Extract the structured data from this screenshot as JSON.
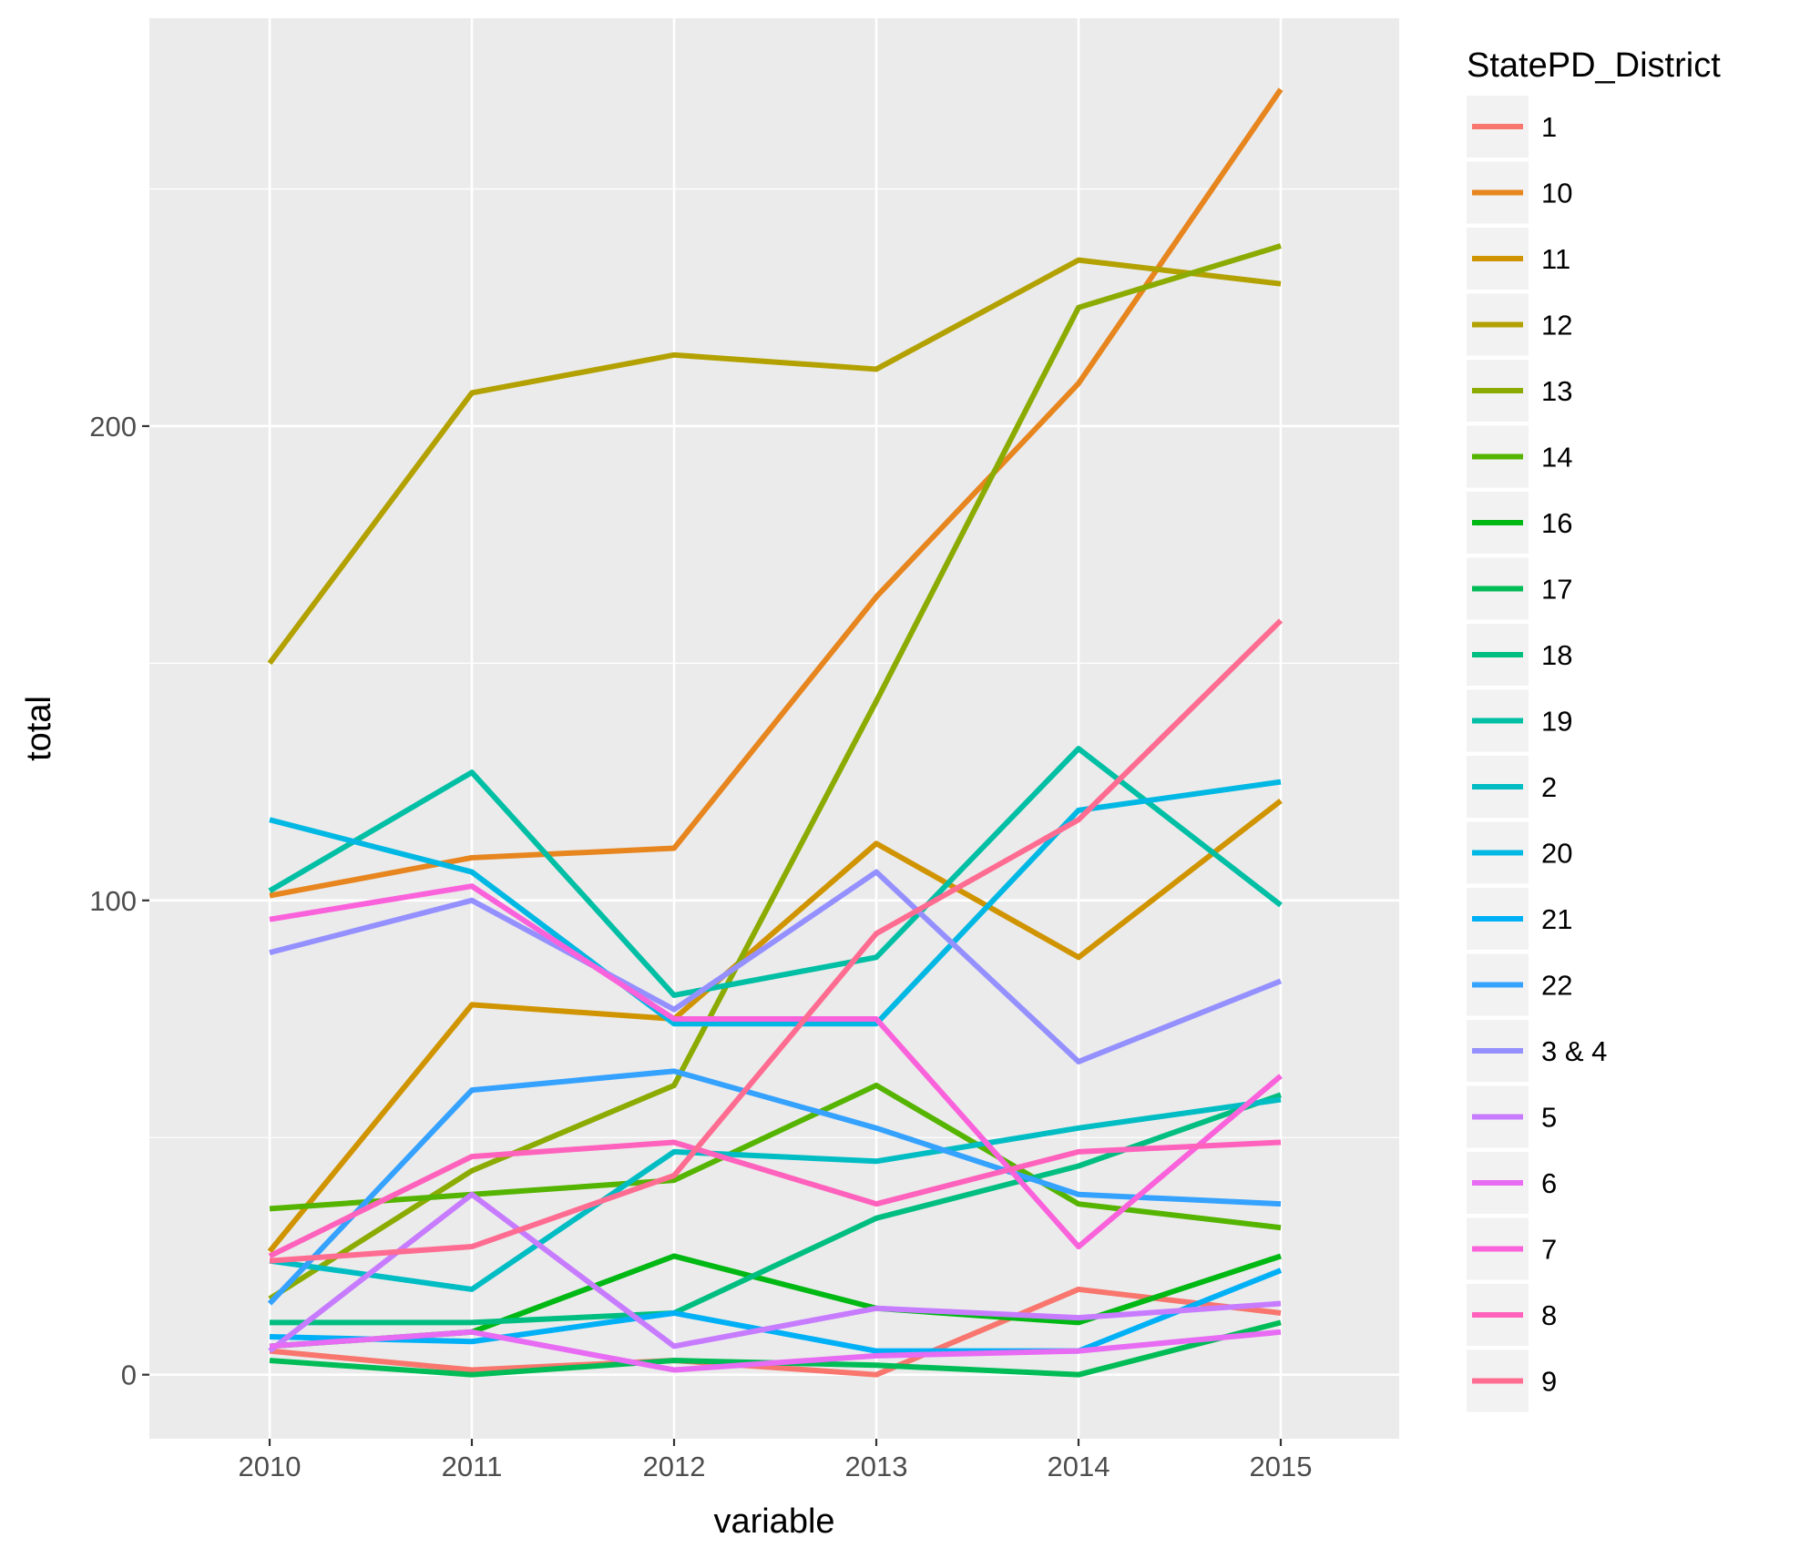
{
  "chart_data": {
    "type": "line",
    "xlabel": "variable",
    "ylabel": "total",
    "x": [
      "2010",
      "2011",
      "2012",
      "2013",
      "2014",
      "2015"
    ],
    "y_ticks": [
      0,
      100,
      200
    ],
    "ylim": [
      -13.5,
      286
    ],
    "grid": true,
    "legend": {
      "title": "StatePD_District",
      "placement": "right"
    },
    "series": [
      {
        "name": "1",
        "color": "#F8766D",
        "values": [
          5,
          1,
          3,
          0,
          18,
          13
        ]
      },
      {
        "name": "10",
        "color": "#E7851E",
        "values": [
          101,
          109,
          111,
          164,
          209,
          271
        ]
      },
      {
        "name": "11",
        "color": "#D09400",
        "values": [
          26,
          78,
          75,
          112,
          88,
          121
        ]
      },
      {
        "name": "12",
        "color": "#B2A100",
        "values": [
          150,
          207,
          215,
          212,
          235,
          230
        ]
      },
      {
        "name": "13",
        "color": "#8BAB00",
        "values": [
          16,
          43,
          61,
          142,
          225,
          238
        ]
      },
      {
        "name": "14",
        "color": "#55B400",
        "values": [
          35,
          38,
          41,
          61,
          36,
          31
        ]
      },
      {
        "name": "16",
        "color": "#00B813",
        "values": [
          6,
          9,
          25,
          14,
          11,
          25
        ]
      },
      {
        "name": "17",
        "color": "#00BC56",
        "values": [
          3,
          0,
          3,
          2,
          0,
          11
        ]
      },
      {
        "name": "18",
        "color": "#00BE80",
        "values": [
          11,
          11,
          13,
          33,
          44,
          59
        ]
      },
      {
        "name": "19",
        "color": "#00BFA4",
        "values": [
          102,
          127,
          80,
          88,
          132,
          99
        ]
      },
      {
        "name": "2",
        "color": "#00BDC4",
        "values": [
          24,
          18,
          47,
          45,
          52,
          58
        ]
      },
      {
        "name": "20",
        "color": "#00B8E3",
        "values": [
          117,
          106,
          74,
          74,
          119,
          125
        ]
      },
      {
        "name": "21",
        "color": "#00B0F6",
        "values": [
          8,
          7,
          13,
          5,
          5,
          22
        ]
      },
      {
        "name": "22",
        "color": "#35A2FF",
        "values": [
          15,
          60,
          64,
          52,
          38,
          36
        ]
      },
      {
        "name": "3 & 4",
        "color": "#9590FF",
        "values": [
          89,
          100,
          77,
          106,
          66,
          83
        ]
      },
      {
        "name": "5",
        "color": "#C77CFF",
        "values": [
          5,
          38,
          6,
          14,
          12,
          15
        ]
      },
      {
        "name": "6",
        "color": "#E76BF3",
        "values": [
          6,
          9,
          1,
          4,
          5,
          9
        ]
      },
      {
        "name": "7",
        "color": "#FA62DB",
        "values": [
          96,
          103,
          75,
          75,
          27,
          63
        ]
      },
      {
        "name": "8",
        "color": "#FF62BC",
        "values": [
          25,
          46,
          49,
          36,
          47,
          49
        ]
      },
      {
        "name": "9",
        "color": "#FF6C91",
        "values": [
          24,
          27,
          42,
          93,
          117,
          159
        ]
      }
    ]
  }
}
